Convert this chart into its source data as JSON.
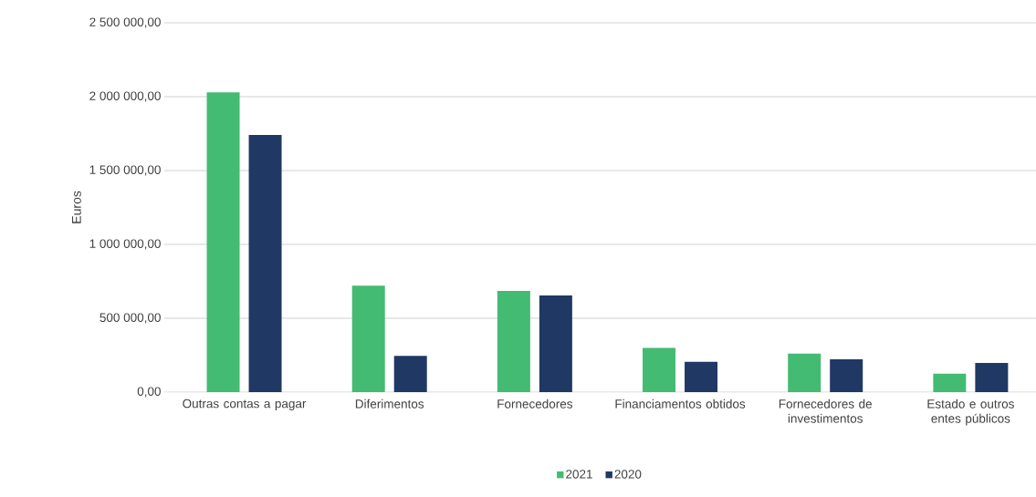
{
  "chart_data": {
    "type": "bar",
    "ylabel": "Euros",
    "categories": [
      "Outras contas a pagar",
      "Diferimentos",
      "Fornecedores",
      "Financiamentos obtidos",
      "Fornecedores de investimentos",
      "Estado e outros entes públicos"
    ],
    "series": [
      {
        "name": "2021",
        "color": "#44bb72",
        "values": [
          2030000,
          720000,
          685000,
          300000,
          260000,
          125000
        ]
      },
      {
        "name": "2020",
        "color": "#203864",
        "values": [
          1740000,
          245000,
          655000,
          205000,
          222000,
          198000
        ]
      }
    ],
    "ylim": [
      0,
      2500000
    ],
    "yticks": [
      {
        "value": 0,
        "label": "0,00"
      },
      {
        "value": 500000,
        "label": "500 000,00"
      },
      {
        "value": 1000000,
        "label": "1 000 000,00"
      },
      {
        "value": 1500000,
        "label": "1 500 000,00"
      },
      {
        "value": 2000000,
        "label": "2 000 000,00"
      },
      {
        "value": 2500000,
        "label": "2 500 000,00"
      }
    ],
    "grid": "y",
    "legend": "bottom"
  }
}
